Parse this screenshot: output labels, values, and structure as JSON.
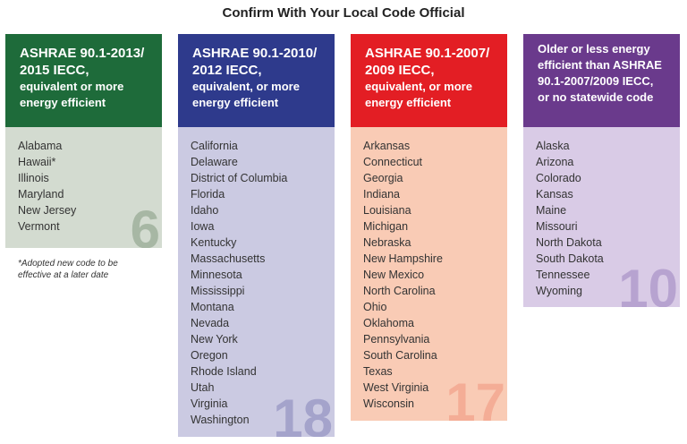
{
  "title": "Confirm With Your Local Code Official",
  "columns": [
    {
      "heading": [
        "ASHRAE 90.1-2013/",
        "2015 IECC,"
      ],
      "subheading": [
        "equivalent or more",
        "energy efficient"
      ],
      "states": [
        "Alabama",
        "Hawaii*",
        "Illinois",
        "Maryland",
        "New Jersey",
        "Vermont"
      ],
      "count": "6"
    },
    {
      "heading": [
        "ASHRAE 90.1-2010/",
        "2012 IECC,"
      ],
      "subheading": [
        "equivalent, or more",
        "energy efficient"
      ],
      "states": [
        "California",
        "Delaware",
        "District of Columbia",
        "Florida",
        "Idaho",
        "Iowa",
        "Kentucky",
        "Massachusetts",
        "Minnesota",
        "Mississippi",
        "Montana",
        "Nevada",
        "New York",
        "Oregon",
        "Rhode Island",
        "Utah",
        "Virginia",
        "Washington"
      ],
      "count": "18"
    },
    {
      "heading": [
        "ASHRAE 90.1-2007/",
        "2009 IECC,"
      ],
      "subheading": [
        "equivalent, or more",
        "energy efficient"
      ],
      "states": [
        "Arkansas",
        "Connecticut",
        "Georgia",
        "Indiana",
        "Louisiana",
        "Michigan",
        "Nebraska",
        "New Hampshire",
        "New Mexico",
        "North Carolina",
        "Ohio",
        "Oklahoma",
        "Pennsylvania",
        "South Carolina",
        "Texas",
        "West Virginia",
        "Wisconsin"
      ],
      "count": "17"
    },
    {
      "heading": [],
      "subheading": [
        "Older or less energy",
        "efficient than ASHRAE",
        "90.1-2007/2009 IECC,",
        "or no statewide code"
      ],
      "states": [
        "Alaska",
        "Arizona",
        "Colorado",
        "Kansas",
        "Maine",
        "Missouri",
        "North Dakota",
        "South Dakota",
        "Tennessee",
        "Wyoming"
      ],
      "count": "10"
    }
  ],
  "footnote": [
    "*Adopted new code to be",
    "effective at a later date"
  ]
}
